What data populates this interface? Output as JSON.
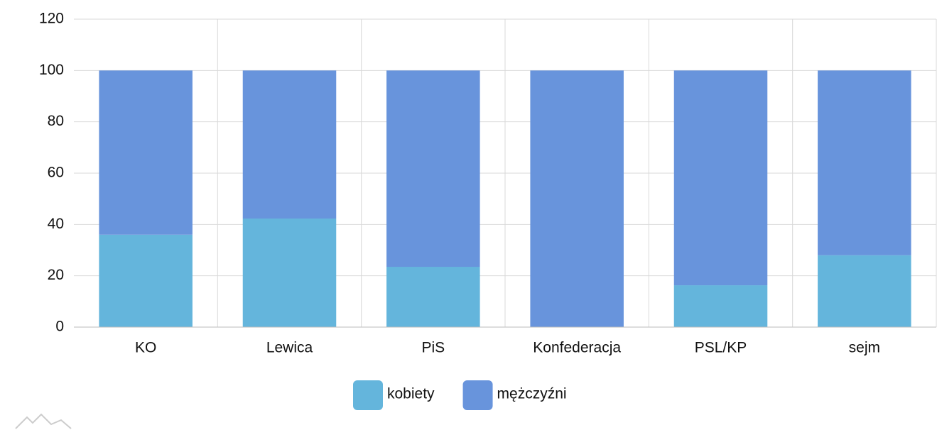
{
  "chart_data": {
    "type": "stacked_bar",
    "categories": [
      "KO",
      "Lewica",
      "PiS",
      "Konfederacja",
      "PSL/KP",
      "sejm"
    ],
    "series": [
      {
        "name": "kobiety",
        "color": "#64b5dc",
        "values": [
          36,
          42.3,
          23.5,
          0,
          16.3,
          28
        ]
      },
      {
        "name": "mężczyźni",
        "color": "#6894dc",
        "values": [
          64,
          57.7,
          76.5,
          100,
          83.7,
          72
        ]
      }
    ],
    "ylim": [
      0,
      120
    ],
    "yticks": [
      0,
      20,
      40,
      60,
      80,
      100,
      120
    ],
    "grid": true,
    "legend": "bottom"
  }
}
